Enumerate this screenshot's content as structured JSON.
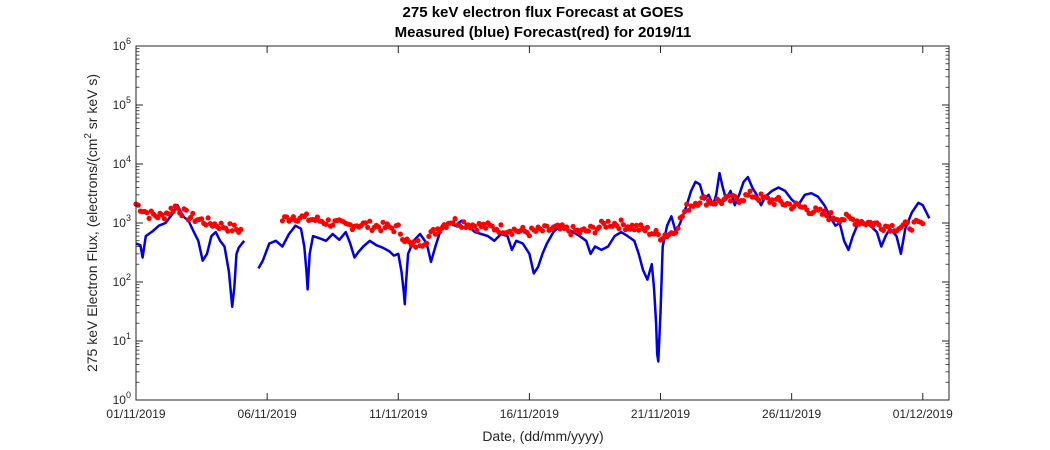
{
  "chart_data": {
    "type": "line",
    "title": [
      "275 keV electron flux Forecast at GOES",
      "Measured (blue) Forecast(red) for 2019/11"
    ],
    "xlabel": "Date, (dd/mm/yyyy)",
    "ylabel": {
      "before": "275 keV Electron Flux, (electrons/(cm",
      "sup": "2",
      "after": " sr keV s)"
    },
    "xlim": [
      "2019-11-01",
      "2019-12-02"
    ],
    "x_ticks": [
      {
        "x": "2019-11-01",
        "label": "01/11/2019"
      },
      {
        "x": "2019-11-06",
        "label": "06/11/2019"
      },
      {
        "x": "2019-11-11",
        "label": "11/11/2019"
      },
      {
        "x": "2019-11-16",
        "label": "16/11/2019"
      },
      {
        "x": "2019-11-21",
        "label": "21/11/2019"
      },
      {
        "x": "2019-11-26",
        "label": "26/11/2019"
      },
      {
        "x": "2019-12-01",
        "label": "01/12/2019"
      }
    ],
    "y_scale": "log",
    "ylim": [
      1,
      1000000
    ],
    "y_ticks": [
      {
        "base": "10",
        "exp": "0"
      },
      {
        "base": "10",
        "exp": "1"
      },
      {
        "base": "10",
        "exp": "2"
      },
      {
        "base": "10",
        "exp": "3"
      },
      {
        "base": "10",
        "exp": "4"
      },
      {
        "base": "10",
        "exp": "5"
      },
      {
        "base": "10",
        "exp": "6"
      }
    ],
    "grid": false,
    "colors": {
      "measured": "#0000e6",
      "forecast": "#ff0000",
      "axis": "#262626"
    },
    "series": [
      {
        "name": "Measured",
        "style": "line",
        "segments": [
          [
            [
              "2019-11-01 00:00",
              450
            ],
            [
              "2019-11-01 04:00",
              420
            ],
            [
              "2019-11-01 06:00",
              260
            ],
            [
              "2019-11-01 09:00",
              600
            ],
            [
              "2019-11-01 15:00",
              720
            ],
            [
              "2019-11-01 21:00",
              900
            ],
            [
              "2019-11-02 03:00",
              1000
            ],
            [
              "2019-11-02 09:00",
              1400
            ],
            [
              "2019-11-02 14:00",
              2000
            ],
            [
              "2019-11-02 19:00",
              1300
            ],
            [
              "2019-11-03 00:00",
              1100
            ],
            [
              "2019-11-03 05:00",
              700
            ],
            [
              "2019-11-03 09:00",
              500
            ],
            [
              "2019-11-03 13:00",
              230
            ],
            [
              "2019-11-03 17:00",
              300
            ],
            [
              "2019-11-03 21:00",
              600
            ],
            [
              "2019-11-04 01:00",
              700
            ],
            [
              "2019-11-04 05:00",
              500
            ],
            [
              "2019-11-04 09:00",
              400
            ],
            [
              "2019-11-04 13:00",
              150
            ],
            [
              "2019-11-04 15:00",
              60
            ],
            [
              "2019-11-04 16:00",
              38
            ],
            [
              "2019-11-04 18:00",
              80
            ],
            [
              "2019-11-04 20:00",
              300
            ],
            [
              "2019-11-04 22:00",
              380
            ],
            [
              "2019-11-05 01:00",
              450
            ],
            [
              "2019-11-05 03:00",
              500
            ]
          ],
          [
            [
              "2019-11-05 16:00",
              170
            ],
            [
              "2019-11-05 20:00",
              230
            ],
            [
              "2019-11-06 02:00",
              450
            ],
            [
              "2019-11-06 08:00",
              500
            ],
            [
              "2019-11-06 14:00",
              400
            ],
            [
              "2019-11-06 20:00",
              650
            ],
            [
              "2019-11-07 02:00",
              900
            ],
            [
              "2019-11-07 07:00",
              800
            ],
            [
              "2019-11-07 10:00",
              400
            ],
            [
              "2019-11-07 12:00",
              150
            ],
            [
              "2019-11-07 13:00",
              75
            ],
            [
              "2019-11-07 15:00",
              300
            ],
            [
              "2019-11-07 18:00",
              600
            ],
            [
              "2019-11-08 00:00",
              550
            ],
            [
              "2019-11-08 06:00",
              500
            ],
            [
              "2019-11-08 12:00",
              650
            ],
            [
              "2019-11-08 18:00",
              520
            ],
            [
              "2019-11-09 00:00",
              700
            ],
            [
              "2019-11-09 04:00",
              450
            ],
            [
              "2019-11-09 08:00",
              260
            ],
            [
              "2019-11-09 12:00",
              330
            ],
            [
              "2019-11-09 16:00",
              400
            ],
            [
              "2019-11-09 22:00",
              500
            ],
            [
              "2019-11-10 04:00",
              420
            ],
            [
              "2019-11-10 10:00",
              380
            ],
            [
              "2019-11-10 16:00",
              330
            ],
            [
              "2019-11-10 20:00",
              280
            ],
            [
              "2019-11-11 00:00",
              300
            ],
            [
              "2019-11-11 03:00",
              150
            ],
            [
              "2019-11-11 05:00",
              70
            ],
            [
              "2019-11-11 06:00",
              42
            ],
            [
              "2019-11-11 07:00",
              90
            ],
            [
              "2019-11-11 09:00",
              300
            ],
            [
              "2019-11-11 14:00",
              500
            ],
            [
              "2019-11-11 20:00",
              650
            ],
            [
              "2019-11-12 02:00",
              450
            ],
            [
              "2019-11-12 06:00",
              220
            ],
            [
              "2019-11-12 10:00",
              400
            ],
            [
              "2019-11-12 16:00",
              900
            ],
            [
              "2019-11-12 22:00",
              1000
            ],
            [
              "2019-11-13 04:00",
              900
            ],
            [
              "2019-11-13 10:00",
              1100
            ],
            [
              "2019-11-13 16:00",
              900
            ],
            [
              "2019-11-13 22:00",
              700
            ],
            [
              "2019-11-14 04:00",
              650
            ],
            [
              "2019-11-14 10:00",
              600
            ],
            [
              "2019-11-14 16:00",
              500
            ],
            [
              "2019-11-14 22:00",
              650
            ],
            [
              "2019-11-15 04:00",
              600
            ],
            [
              "2019-11-15 08:00",
              350
            ],
            [
              "2019-11-15 12:00",
              500
            ],
            [
              "2019-11-15 18:00",
              450
            ],
            [
              "2019-11-16 00:00",
              300
            ],
            [
              "2019-11-16 04:00",
              140
            ],
            [
              "2019-11-16 08:00",
              180
            ],
            [
              "2019-11-16 12:00",
              300
            ],
            [
              "2019-11-16 16:00",
              450
            ],
            [
              "2019-11-16 22:00",
              700
            ],
            [
              "2019-11-17 04:00",
              900
            ],
            [
              "2019-11-17 10:00",
              800
            ],
            [
              "2019-11-17 16:00",
              700
            ],
            [
              "2019-11-17 22:00",
              600
            ],
            [
              "2019-11-18 04:00",
              500
            ],
            [
              "2019-11-18 08:00",
              300
            ],
            [
              "2019-11-18 12:00",
              400
            ],
            [
              "2019-11-18 18:00",
              350
            ],
            [
              "2019-11-19 00:00",
              400
            ],
            [
              "2019-11-19 06:00",
              600
            ],
            [
              "2019-11-19 12:00",
              700
            ],
            [
              "2019-11-19 18:00",
              600
            ],
            [
              "2019-11-20 00:00",
              500
            ],
            [
              "2019-11-20 04:00",
              300
            ],
            [
              "2019-11-20 08:00",
              160
            ],
            [
              "2019-11-20 12:00",
              110
            ],
            [
              "2019-11-20 16:00",
              200
            ],
            [
              "2019-11-20 18:00",
              80
            ],
            [
              "2019-11-20 20:00",
              20
            ],
            [
              "2019-11-20 21:00",
              6
            ],
            [
              "2019-11-20 22:00",
              4.5
            ],
            [
              "2019-11-21 00:00",
              30
            ],
            [
              "2019-11-21 02:00",
              400
            ],
            [
              "2019-11-21 06:00",
              900
            ],
            [
              "2019-11-21 10:00",
              1300
            ],
            [
              "2019-11-21 14:00",
              700
            ],
            [
              "2019-11-21 18:00",
              1000
            ],
            [
              "2019-11-22 00:00",
              2000
            ],
            [
              "2019-11-22 04:00",
              3500
            ],
            [
              "2019-11-22 08:00",
              5000
            ],
            [
              "2019-11-22 12:00",
              4500
            ],
            [
              "2019-11-22 16:00",
              2500
            ],
            [
              "2019-11-22 20:00",
              3000
            ],
            [
              "2019-11-23 00:00",
              2000
            ],
            [
              "2019-11-23 03:00",
              3000
            ],
            [
              "2019-11-23 06:00",
              7000
            ],
            [
              "2019-11-23 09:00",
              4000
            ],
            [
              "2019-11-23 12:00",
              2500
            ],
            [
              "2019-11-23 16:00",
              3500
            ],
            [
              "2019-11-23 20:00",
              2000
            ],
            [
              "2019-11-24 00:00",
              3000
            ],
            [
              "2019-11-24 04:00",
              5000
            ],
            [
              "2019-11-24 08:00",
              6000
            ],
            [
              "2019-11-24 12:00",
              4000
            ],
            [
              "2019-11-24 16:00",
              3000
            ],
            [
              "2019-11-24 20:00",
              2000
            ],
            [
              "2019-11-25 00:00",
              2800
            ],
            [
              "2019-11-25 06:00",
              3500
            ],
            [
              "2019-11-25 12:00",
              4000
            ],
            [
              "2019-11-25 18:00",
              3500
            ],
            [
              "2019-11-26 00:00",
              2500
            ],
            [
              "2019-11-26 06:00",
              2000
            ],
            [
              "2019-11-26 12:00",
              3000
            ],
            [
              "2019-11-26 18:00",
              3200
            ],
            [
              "2019-11-27 00:00",
              2800
            ],
            [
              "2019-11-27 06:00",
              2000
            ],
            [
              "2019-11-27 12:00",
              1200
            ],
            [
              "2019-11-27 16:00",
              900
            ],
            [
              "2019-11-27 20:00",
              1000
            ],
            [
              "2019-11-28 00:00",
              500
            ],
            [
              "2019-11-28 04:00",
              350
            ],
            [
              "2019-11-28 08:00",
              600
            ],
            [
              "2019-11-28 12:00",
              900
            ],
            [
              "2019-11-28 18:00",
              1000
            ],
            [
              "2019-11-29 00:00",
              900
            ],
            [
              "2019-11-29 06:00",
              700
            ],
            [
              "2019-11-29 10:00",
              400
            ],
            [
              "2019-11-29 14:00",
              600
            ],
            [
              "2019-11-29 18:00",
              800
            ],
            [
              "2019-11-30 00:00",
              600
            ],
            [
              "2019-11-30 04:00",
              300
            ],
            [
              "2019-11-30 08:00",
              800
            ],
            [
              "2019-11-30 14:00",
              1500
            ],
            [
              "2019-11-30 20:00",
              2200
            ],
            [
              "2019-12-01 00:00",
              2000
            ],
            [
              "2019-12-01 06:00",
              1200
            ]
          ]
        ]
      },
      {
        "name": "Forecast",
        "style": "markers",
        "anchors": [
          [
            "2019-11-01 00:00",
            2100
          ],
          [
            "2019-11-01 12:00",
            1400
          ],
          [
            "2019-11-02 00:00",
            1300
          ],
          [
            "2019-11-02 12:00",
            1900
          ],
          [
            "2019-11-03 00:00",
            1300
          ],
          [
            "2019-11-03 12:00",
            1100
          ],
          [
            "2019-11-04 00:00",
            950
          ],
          [
            "2019-11-04 12:00",
            850
          ],
          [
            "2019-11-05 00:00",
            750
          ],
          [
            "2019-11-06 12:00",
            1100
          ],
          [
            "2019-11-07 00:00",
            1300
          ],
          [
            "2019-11-07 12:00",
            1200
          ],
          [
            "2019-11-08 00:00",
            1100
          ],
          [
            "2019-11-08 12:00",
            1000
          ],
          [
            "2019-11-09 00:00",
            900
          ],
          [
            "2019-11-09 12:00",
            950
          ],
          [
            "2019-11-10 00:00",
            900
          ],
          [
            "2019-11-10 12:00",
            850
          ],
          [
            "2019-11-11 00:00",
            800
          ],
          [
            "2019-11-11 06:00",
            550
          ],
          [
            "2019-11-11 12:00",
            400
          ],
          [
            "2019-11-12 00:00",
            500
          ],
          [
            "2019-11-12 12:00",
            800
          ],
          [
            "2019-11-13 00:00",
            1100
          ],
          [
            "2019-11-13 12:00",
            1000
          ],
          [
            "2019-11-14 00:00",
            900
          ],
          [
            "2019-11-14 12:00",
            850
          ],
          [
            "2019-11-15 00:00",
            800
          ],
          [
            "2019-11-15 12:00",
            750
          ],
          [
            "2019-11-16 00:00",
            700
          ],
          [
            "2019-11-16 12:00",
            750
          ],
          [
            "2019-11-17 00:00",
            800
          ],
          [
            "2019-11-17 12:00",
            750
          ],
          [
            "2019-11-18 00:00",
            700
          ],
          [
            "2019-11-18 12:00",
            800
          ],
          [
            "2019-11-19 00:00",
            1000
          ],
          [
            "2019-11-19 12:00",
            950
          ],
          [
            "2019-11-20 00:00",
            850
          ],
          [
            "2019-11-20 12:00",
            750
          ],
          [
            "2019-11-21 00:00",
            600
          ],
          [
            "2019-11-21 12:00",
            700
          ],
          [
            "2019-11-22 00:00",
            1800
          ],
          [
            "2019-11-22 12:00",
            2500
          ],
          [
            "2019-11-23 00:00",
            2300
          ],
          [
            "2019-11-23 12:00",
            2400
          ],
          [
            "2019-11-24 00:00",
            2600
          ],
          [
            "2019-11-24 12:00",
            3000
          ],
          [
            "2019-11-25 00:00",
            2500
          ],
          [
            "2019-11-25 12:00",
            2300
          ],
          [
            "2019-11-26 00:00",
            2000
          ],
          [
            "2019-11-26 12:00",
            1800
          ],
          [
            "2019-11-27 00:00",
            1500
          ],
          [
            "2019-11-27 12:00",
            1300
          ],
          [
            "2019-11-28 00:00",
            1200
          ],
          [
            "2019-11-28 12:00",
            1100
          ],
          [
            "2019-11-29 00:00",
            1000
          ],
          [
            "2019-11-29 12:00",
            900
          ],
          [
            "2019-11-30 00:00",
            850
          ],
          [
            "2019-11-30 12:00",
            900
          ],
          [
            "2019-12-01 00:00",
            950
          ]
        ]
      }
    ]
  }
}
